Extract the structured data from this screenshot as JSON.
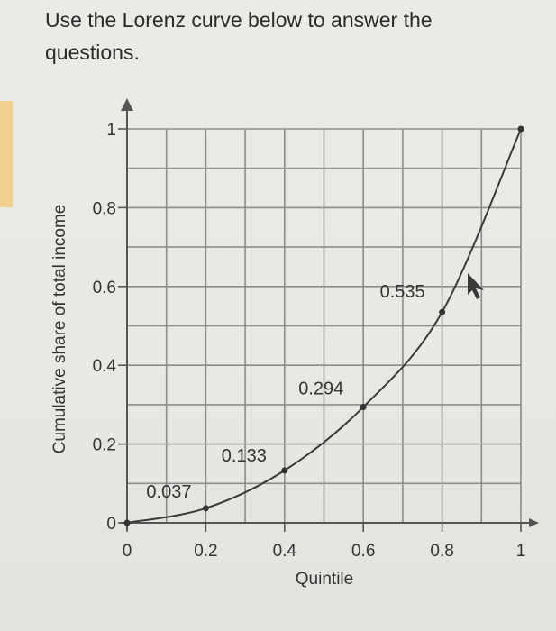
{
  "question": {
    "text": "Use the Lorenz curve below to answer the questions."
  },
  "colors": {
    "grid": "#8c8c8c",
    "curve": "#3a3a3a",
    "accent_strip": "#efd08f"
  },
  "chart_data": {
    "type": "line",
    "title": "",
    "xlabel": "Quintile",
    "ylabel": "Cumulative share of total income",
    "xlim": [
      0,
      1
    ],
    "ylim": [
      0,
      1
    ],
    "x_ticks": [
      0,
      0.2,
      0.4,
      0.6,
      0.8,
      1
    ],
    "x_tick_labels": [
      "0",
      "0.2",
      "0.4",
      "0.6",
      "0.8",
      "1"
    ],
    "y_ticks": [
      0,
      0.2,
      0.4,
      0.6,
      0.8,
      1
    ],
    "y_tick_labels": [
      "0",
      "0.2",
      "0.4",
      "0.6",
      "0.8",
      "1"
    ],
    "grid": true,
    "grid_step": 0.1,
    "series": [
      {
        "x": [
          0,
          0.2,
          0.4,
          0.6,
          0.8,
          1
        ],
        "y": [
          0,
          0.037,
          0.133,
          0.294,
          0.535,
          1
        ]
      }
    ],
    "data_labels": [
      "0.037",
      "0.133",
      "0.294",
      "0.535"
    ]
  }
}
